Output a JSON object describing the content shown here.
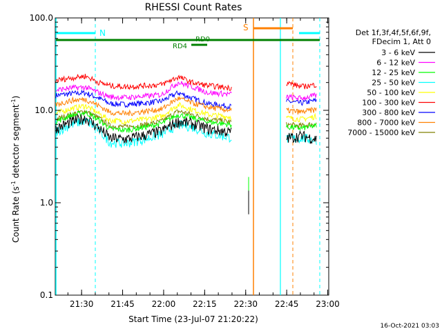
{
  "chart_data": {
    "type": "line",
    "title": "RHESSI Count Rates",
    "xlabel": "Start Time (23-Jul-07 21:20:22)",
    "ylabel_main": "Count Rate (s",
    "ylabel_exp1": "-1",
    "ylabel_mid": " detector segment",
    "ylabel_exp2": "-1",
    "ylabel_end": ")",
    "yscale": "log",
    "ylim": [
      0.1,
      100.0
    ],
    "xlim_minutes": [
      0,
      100
    ],
    "y_ticks": [
      {
        "value": 100.0,
        "label": "100.0"
      },
      {
        "value": 10.0,
        "label": "10.0"
      },
      {
        "value": 1.0,
        "label": "1.0"
      },
      {
        "value": 0.1,
        "label": "0.1"
      }
    ],
    "x_ticks": [
      {
        "minute": 9.63,
        "label": "21:30"
      },
      {
        "minute": 24.63,
        "label": "21:45"
      },
      {
        "minute": 39.63,
        "label": "22:00"
      },
      {
        "minute": 54.63,
        "label": "22:15"
      },
      {
        "minute": 69.63,
        "label": "22:30"
      },
      {
        "minute": 84.63,
        "label": "22:45"
      },
      {
        "minute": 99.63,
        "label": "23:00"
      }
    ],
    "legend_header": [
      "Det 1f,3f,4f,5f,6f,9f,",
      "FDecim 1, Att 0"
    ],
    "series": [
      {
        "name": "3 - 6 keV",
        "color": "#000000",
        "values": [
          6.3,
          7.5,
          8.3,
          6.4,
          5.0,
          4.9,
          5.4,
          6.0,
          7.6,
          7.2,
          6.3,
          5.8
        ]
      },
      {
        "name": "6 - 12 keV",
        "color": "#ff00ff",
        "values": [
          16.5,
          17.5,
          17.8,
          15.5,
          14.0,
          13.8,
          14.2,
          14.8,
          20.0,
          18.0,
          15.5,
          15.0
        ]
      },
      {
        "name": "12 - 25 keV",
        "color": "#00ff00",
        "values": [
          7.5,
          8.8,
          9.5,
          7.8,
          6.3,
          6.1,
          6.6,
          7.2,
          9.0,
          8.3,
          7.5,
          7.0
        ]
      },
      {
        "name": "25 - 50 keV",
        "color": "#00ffff",
        "values": [
          5.8,
          7.0,
          7.8,
          6.0,
          4.5,
          4.4,
          4.9,
          5.5,
          7.0,
          6.6,
          5.6,
          5.1
        ]
      },
      {
        "name": "50 - 100 keV",
        "color": "#ffff00",
        "values": [
          9.2,
          10.5,
          11.2,
          9.2,
          7.8,
          7.6,
          8.0,
          8.6,
          11.5,
          10.2,
          9.0,
          8.5
        ]
      },
      {
        "name": "100 - 300 keV",
        "color": "#ff0000",
        "values": [
          21.0,
          22.5,
          23.5,
          20.0,
          18.5,
          18.0,
          18.5,
          19.0,
          23.0,
          20.0,
          18.5,
          17.5
        ]
      },
      {
        "name": "300 - 800 keV",
        "color": "#0000ff",
        "values": [
          14.5,
          15.2,
          15.5,
          13.5,
          11.8,
          11.6,
          12.0,
          12.6,
          15.5,
          13.5,
          11.8,
          11.0
        ]
      },
      {
        "name": "800 - 7000 keV",
        "color": "#ff8000",
        "values": [
          11.5,
          12.8,
          13.2,
          11.2,
          9.5,
          9.2,
          9.8,
          10.3,
          13.5,
          12.0,
          10.8,
          10.0
        ]
      },
      {
        "name": "7000 - 15000 keV",
        "color": "#808000",
        "values": [
          8.0,
          9.0,
          9.8,
          8.2,
          6.8,
          6.6,
          7.0,
          7.6,
          9.8,
          9.0,
          8.0,
          7.5
        ]
      }
    ],
    "series_x_minutes": [
      0,
      6,
      11,
      16,
      20,
      26,
      33,
      39,
      45,
      50,
      56,
      64
    ],
    "after_gap_values": [
      [
        5.0,
        5.3,
        4.9
      ],
      [
        14.0,
        13.5,
        14.5
      ],
      [
        6.6,
        6.4,
        6.8
      ],
      [
        4.9,
        5.0,
        4.8
      ],
      [
        8.3,
        8.0,
        8.6
      ],
      [
        20.0,
        18.0,
        19.0
      ],
      [
        12.5,
        12.0,
        12.8
      ],
      [
        10.0,
        9.6,
        10.2
      ],
      [
        7.0,
        6.8,
        7.2
      ]
    ],
    "after_gap_x_minutes": [
      84.5,
      90,
      95.5
    ],
    "annotations": {
      "night_label": "N",
      "saa_label": "S",
      "rd0_label": "RD0",
      "rd4_label": "RD4"
    }
  },
  "footer": {
    "timestamp": "16-Oct-2021 03:03"
  },
  "colors": {
    "cyan": "#00ffff",
    "green": "#008000",
    "orange": "#ff8000"
  }
}
